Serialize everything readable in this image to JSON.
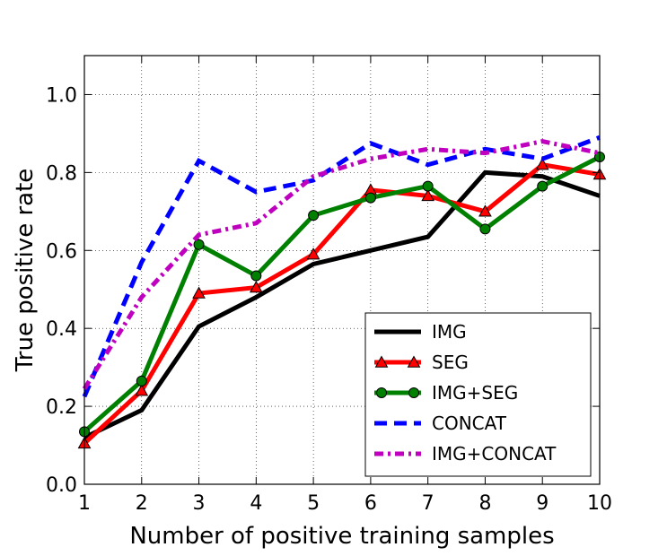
{
  "chart_data": {
    "type": "line",
    "title": "",
    "xlabel": "Number of positive training samples",
    "ylabel": "True positive rate",
    "xlim": [
      1,
      10
    ],
    "ylim": [
      0.0,
      1.1
    ],
    "xticks": [
      1,
      2,
      3,
      4,
      5,
      6,
      7,
      8,
      9,
      10
    ],
    "yticks": [
      0.0,
      0.2,
      0.4,
      0.6,
      0.8,
      1.0
    ],
    "grid": true,
    "legend_position": "bottom-right",
    "x": [
      1,
      2,
      3,
      4,
      5,
      6,
      7,
      8,
      9,
      10
    ],
    "series": [
      {
        "name": "IMG",
        "values": [
          0.12,
          0.19,
          0.405,
          0.48,
          0.565,
          0.6,
          0.635,
          0.8,
          0.79,
          0.74
        ],
        "color": "#000000",
        "style": "solid",
        "marker": "none"
      },
      {
        "name": "SEG",
        "values": [
          0.105,
          0.24,
          0.49,
          0.505,
          0.59,
          0.755,
          0.74,
          0.7,
          0.82,
          0.795
        ],
        "color": "#ff0000",
        "style": "solid",
        "marker": "triangle"
      },
      {
        "name": "IMG+SEG",
        "values": [
          0.135,
          0.265,
          0.615,
          0.535,
          0.69,
          0.735,
          0.765,
          0.655,
          0.765,
          0.84
        ],
        "color": "#008000",
        "style": "solid",
        "marker": "circle"
      },
      {
        "name": "CONCAT",
        "values": [
          0.225,
          0.57,
          0.83,
          0.75,
          0.78,
          0.875,
          0.82,
          0.86,
          0.835,
          0.89
        ],
        "color": "#0000ff",
        "style": "dashed",
        "marker": "none"
      },
      {
        "name": "IMG+CONCAT",
        "values": [
          0.245,
          0.48,
          0.64,
          0.67,
          0.79,
          0.835,
          0.86,
          0.85,
          0.88,
          0.85
        ],
        "color": "#bf00bf",
        "style": "dashdot",
        "marker": "none"
      }
    ]
  }
}
